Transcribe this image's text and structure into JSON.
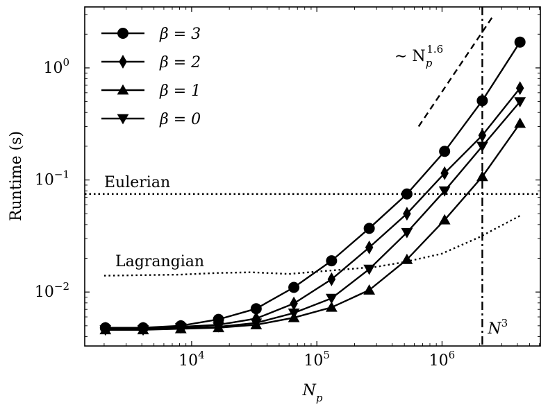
{
  "chart_data": {
    "type": "line",
    "xscale": "log",
    "yscale": "log",
    "xlabel": "N_p",
    "ylabel": "Runtime (s)",
    "xlim": [
      1400,
      6100000
    ],
    "ylim": [
      0.0033,
      3.5
    ],
    "x_ticks": [
      {
        "value": 10000,
        "base": "10",
        "exp": "4"
      },
      {
        "value": 100000,
        "base": "10",
        "exp": "5"
      },
      {
        "value": 1000000,
        "base": "10",
        "exp": "6"
      }
    ],
    "y_ticks": [
      {
        "value": 0.01,
        "base": "10",
        "exp": "−2"
      },
      {
        "value": 0.1,
        "base": "10",
        "exp": "−1"
      },
      {
        "value": 1,
        "base": "10",
        "exp": "0"
      }
    ],
    "legend_position": "top-left",
    "x": [
      2048,
      4096,
      8192,
      16384,
      32768,
      65536,
      131072,
      262144,
      524288,
      1048576,
      2097152,
      4194304
    ],
    "series": [
      {
        "name": "β = 3",
        "marker": "circle",
        "values": [
          0.0048,
          0.0048,
          0.005,
          0.0057,
          0.0071,
          0.011,
          0.019,
          0.037,
          0.075,
          0.18,
          0.51,
          1.7
        ]
      },
      {
        "name": "β = 2",
        "marker": "diamond",
        "values": [
          0.0047,
          0.0047,
          0.0049,
          0.0051,
          0.0058,
          0.0079,
          0.013,
          0.025,
          0.05,
          0.115,
          0.25,
          0.66
        ]
      },
      {
        "name": "β = 1",
        "marker": "triangle-up",
        "values": [
          0.0046,
          0.0046,
          0.0047,
          0.0048,
          0.0051,
          0.0059,
          0.0073,
          0.0104,
          0.0195,
          0.044,
          0.107,
          0.32
        ]
      },
      {
        "name": "β = 0",
        "marker": "triangle-down",
        "values": [
          0.0046,
          0.0046,
          0.0048,
          0.0049,
          0.0053,
          0.0065,
          0.0088,
          0.016,
          0.034,
          0.08,
          0.2,
          0.5
        ]
      }
    ],
    "annotations": {
      "eulerian": {
        "label": "Eulerian",
        "y": 0.075,
        "style": "dotted"
      },
      "lagrangian": {
        "label": "Lagrangian",
        "style": "dotted",
        "x": [
          2000,
          8000,
          16000,
          30000,
          60000,
          100000,
          300000,
          500000,
          1000000,
          2000000,
          4200000
        ],
        "y": [
          0.014,
          0.0143,
          0.0148,
          0.015,
          0.0145,
          0.0152,
          0.0168,
          0.0185,
          0.022,
          0.031,
          0.048
        ]
      },
      "n3": {
        "label_base": "N",
        "label_exp": "3",
        "x": 2097152,
        "style": "dash-dot"
      },
      "scaling": {
        "label_prefix": "∼ N",
        "label_sub": "p",
        "label_exp": "1.6",
        "style": "dashed",
        "x": [
          650000,
          2500000
        ],
        "y": [
          0.3,
          2.8
        ]
      }
    }
  }
}
